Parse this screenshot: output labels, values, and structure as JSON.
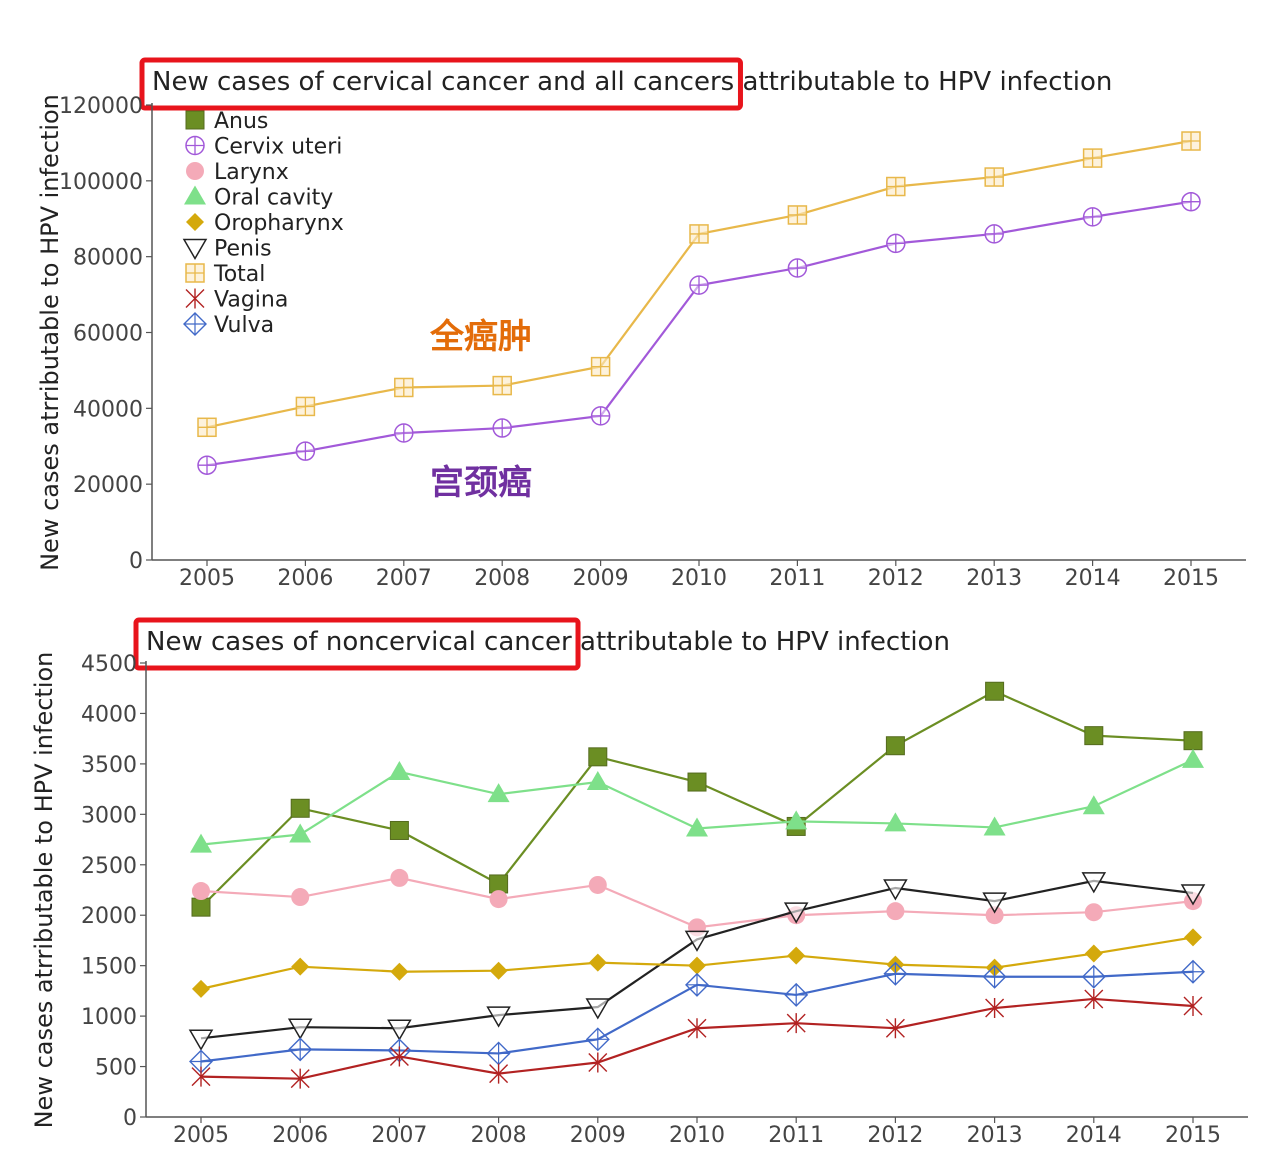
{
  "chart_data": [
    {
      "type": "line",
      "title": "New cases of cervical cancer and all cancers attributable to HPV infection",
      "title_highlight": "New cases of cervical cancer and all cancers",
      "title_rest": "attributable to HPV infection",
      "ylabel": "New cases atrributable to HPV infection",
      "xlabel": "",
      "x": [
        2005,
        2006,
        2007,
        2008,
        2009,
        2010,
        2011,
        2012,
        2013,
        2014,
        2015
      ],
      "ylim": [
        0,
        120000
      ],
      "yticks": [
        0,
        20000,
        40000,
        60000,
        80000,
        100000,
        120000
      ],
      "legend": [
        "Anus",
        "Cervix uteri",
        "Larynx",
        "Oral cavity",
        "Oropharynx",
        "Penis",
        "Total",
        "Vagina",
        "Vulva"
      ],
      "annotations": [
        {
          "text": "全癌肿",
          "color": "#e36c09"
        },
        {
          "text": "宫颈癌",
          "color": "#7030a0"
        }
      ],
      "series": [
        {
          "name": "Total",
          "color": "#e8b84a",
          "marker": "square-plus",
          "values": [
            35000,
            40500,
            45500,
            46000,
            51000,
            86000,
            91000,
            98500,
            101000,
            106000,
            110500
          ]
        },
        {
          "name": "Cervix uteri",
          "color": "#a259d9",
          "marker": "circle-plus",
          "values": [
            25000,
            28700,
            33500,
            34800,
            38000,
            72500,
            77000,
            83500,
            86000,
            90500,
            94500
          ]
        }
      ]
    },
    {
      "type": "line",
      "title": "New cases of noncervical cancer attributable to HPV infection",
      "title_highlight": "New cases of noncervical cancer",
      "title_rest": "attributable to HPV infection",
      "ylabel": "New cases atrributable to HPV infection",
      "xlabel": "",
      "x": [
        2005,
        2006,
        2007,
        2008,
        2009,
        2010,
        2011,
        2012,
        2013,
        2014,
        2015
      ],
      "ylim": [
        0,
        4500
      ],
      "yticks": [
        0,
        500,
        1000,
        1500,
        2000,
        2500,
        3000,
        3500,
        4000,
        4500
      ],
      "series": [
        {
          "name": "Anus",
          "color": "#6b8e23",
          "marker": "square",
          "values": [
            2080,
            3060,
            2840,
            2310,
            3570,
            3320,
            2880,
            3680,
            4220,
            3780,
            3730
          ]
        },
        {
          "name": "Oral cavity",
          "color": "#7ee08a",
          "marker": "triangle-up",
          "values": [
            2700,
            2800,
            3420,
            3200,
            3320,
            2860,
            2930,
            2910,
            2870,
            3080,
            3540
          ]
        },
        {
          "name": "Larynx",
          "color": "#f4aab8",
          "marker": "circle",
          "values": [
            2240,
            2180,
            2370,
            2160,
            2300,
            1880,
            2000,
            2040,
            2000,
            2030,
            2140
          ]
        },
        {
          "name": "Penis",
          "color": "#222222",
          "marker": "triangle-down",
          "values": [
            780,
            890,
            880,
            1010,
            1090,
            1760,
            2040,
            2270,
            2140,
            2340,
            2220
          ]
        },
        {
          "name": "Oropharynx",
          "color": "#d4a90c",
          "marker": "diamond",
          "values": [
            1270,
            1490,
            1440,
            1450,
            1530,
            1500,
            1600,
            1510,
            1480,
            1620,
            1780
          ]
        },
        {
          "name": "Vulva",
          "color": "#4169c8",
          "marker": "diamond-plus",
          "values": [
            550,
            670,
            660,
            630,
            770,
            1310,
            1210,
            1420,
            1390,
            1390,
            1440
          ]
        },
        {
          "name": "Vagina",
          "color": "#b22222",
          "marker": "asterisk",
          "values": [
            400,
            380,
            600,
            430,
            540,
            880,
            930,
            880,
            1080,
            1170,
            1100
          ]
        }
      ]
    }
  ]
}
